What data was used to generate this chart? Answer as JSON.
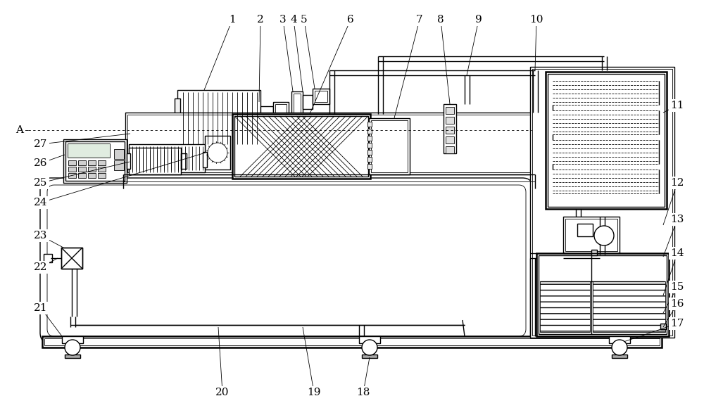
{
  "bg_color": "#ffffff",
  "lc": "#000000",
  "lw": 1.0,
  "tlw": 0.6,
  "thklw": 1.8,
  "fs": 11
}
